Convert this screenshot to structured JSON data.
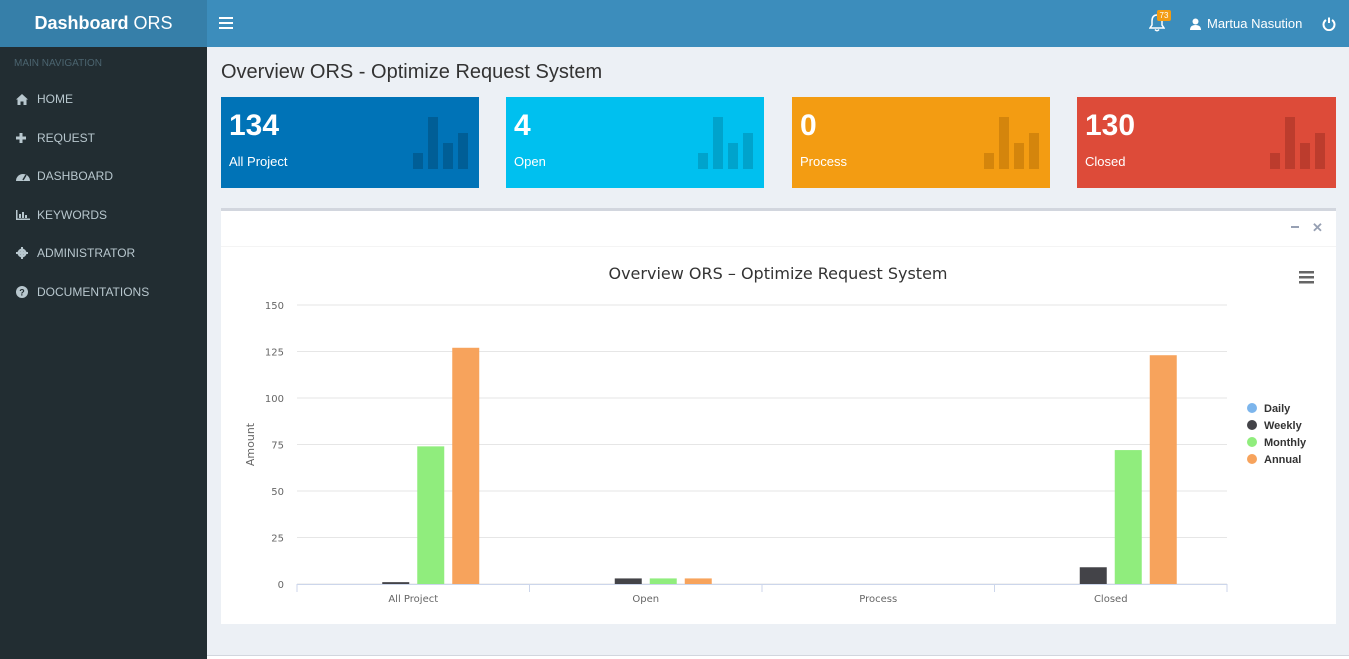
{
  "header": {
    "logo_bold": "Dashboard",
    "logo_light": " ORS",
    "notif_count": "73",
    "user_name": "Martua Nasution"
  },
  "sidebar": {
    "heading": "MAIN NAVIGATION",
    "items": [
      {
        "label": "HOME",
        "icon": "home-icon"
      },
      {
        "label": "REQUEST",
        "icon": "plus-icon"
      },
      {
        "label": "DASHBOARD",
        "icon": "dashboard-icon"
      },
      {
        "label": "KEYWORDS",
        "icon": "bar-chart-icon"
      },
      {
        "label": "ADMINISTRATOR",
        "icon": "gear-icon"
      },
      {
        "label": "DOCUMENTATIONS",
        "icon": "question-icon"
      }
    ]
  },
  "page": {
    "title": "Overview ORS - Optimize Request System"
  },
  "stats": [
    {
      "value": "134",
      "label": "All Project",
      "color": "#0073b7",
      "iconColor": "#005e96"
    },
    {
      "value": "4",
      "label": "Open",
      "color": "#00c0ef",
      "iconColor": "#00a3cc"
    },
    {
      "value": "0",
      "label": "Process",
      "color": "#f39c12",
      "iconColor": "#d4850c"
    },
    {
      "value": "130",
      "label": "Closed",
      "color": "#dd4b39",
      "iconColor": "#bc3c2d"
    }
  ],
  "chart_data": {
    "type": "bar",
    "title": "Overview ORS – Optimize Request System",
    "xlabel": "",
    "ylabel": "Amount",
    "ylim": [
      0,
      150
    ],
    "yticks": [
      0,
      25,
      50,
      75,
      100,
      125,
      150
    ],
    "categories": [
      "All Project",
      "Open",
      "Process",
      "Closed"
    ],
    "series": [
      {
        "name": "Daily",
        "color": "#7cb5ec",
        "values": [
          0,
          0,
          0,
          0
        ]
      },
      {
        "name": "Weekly",
        "color": "#434348",
        "values": [
          1,
          3,
          0,
          9
        ]
      },
      {
        "name": "Monthly",
        "color": "#90ed7d",
        "values": [
          74,
          3,
          0,
          72
        ]
      },
      {
        "name": "Annual",
        "color": "#f7a35c",
        "values": [
          127,
          3,
          0,
          123
        ]
      }
    ],
    "legend": "right"
  }
}
